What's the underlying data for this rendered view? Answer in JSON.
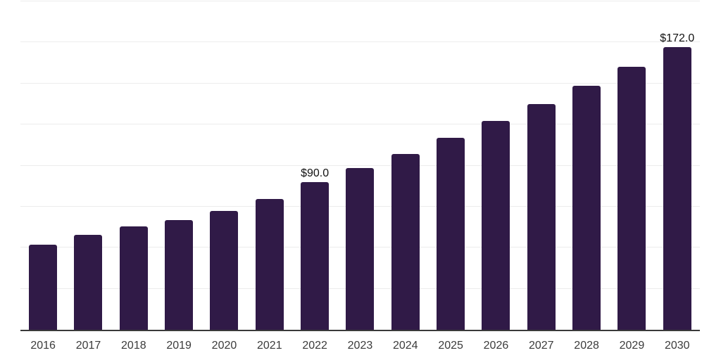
{
  "chart_data": {
    "type": "bar",
    "title": "",
    "xlabel": "",
    "ylabel": "",
    "categories": [
      "2016",
      "2017",
      "2018",
      "2019",
      "2020",
      "2021",
      "2022",
      "2023",
      "2024",
      "2025",
      "2026",
      "2027",
      "2028",
      "2029",
      "2030"
    ],
    "values": [
      52,
      58,
      63,
      67,
      72.5,
      79.5,
      90,
      98.5,
      107,
      117,
      127,
      137.5,
      148.5,
      160,
      172
    ],
    "data_labels": {
      "2022": "$90.0",
      "2030": "$172.0"
    },
    "ylim": [
      0,
      200
    ],
    "gridline_step": 25,
    "grid": "horizontal-only",
    "y_tick_labels_visible": false,
    "legend": "none",
    "colors": {
      "bar": "#301a47",
      "gridline": "#ececec",
      "axis": "#3a3a3a",
      "tick_label": "#3b3b3b",
      "data_label": "#111111",
      "background": "#ffffff"
    }
  }
}
